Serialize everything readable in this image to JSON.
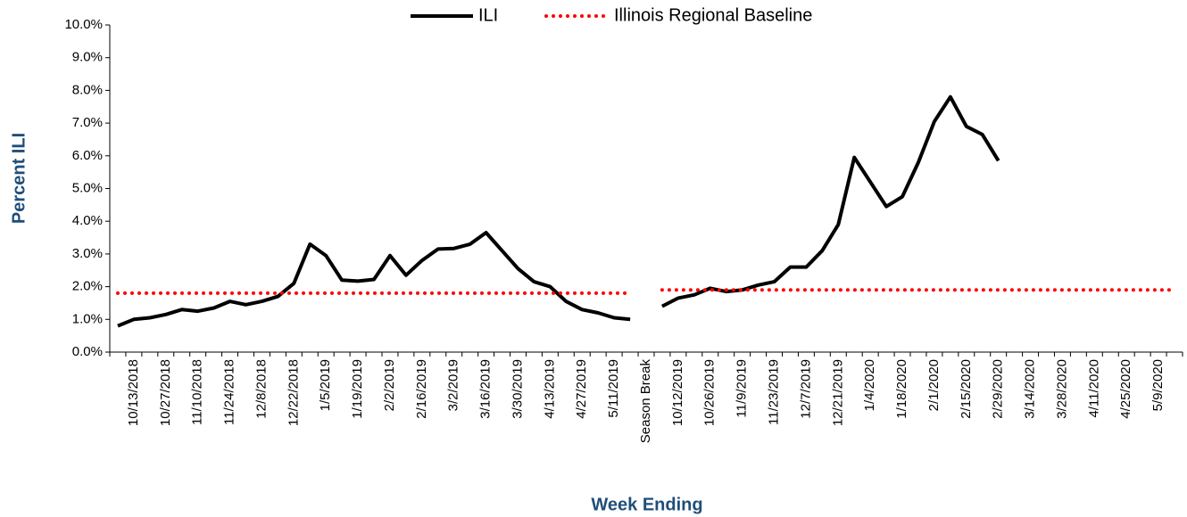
{
  "chart_data": {
    "type": "line",
    "x_label": "Week Ending",
    "y_label": "Percent ILI",
    "categories": [
      null,
      "10/13/2018",
      null,
      "10/27/2018",
      null,
      "11/10/2018",
      null,
      "11/24/2018",
      null,
      "12/8/2018",
      null,
      "12/22/2018",
      null,
      "1/5/2019",
      null,
      "1/19/2019",
      null,
      "2/2/2019",
      null,
      "2/16/2019",
      null,
      "3/2/2019",
      null,
      "3/16/2019",
      null,
      "3/30/2019",
      null,
      "4/13/2019",
      null,
      "4/27/2019",
      null,
      "5/11/2019",
      null,
      "Season Break",
      null,
      "10/12/2019",
      null,
      "10/26/2019",
      null,
      "11/9/2019",
      null,
      "11/23/2019",
      null,
      "12/7/2019",
      null,
      "12/21/2019",
      null,
      "1/4/2020",
      null,
      "1/18/2020",
      null,
      "2/1/2020",
      null,
      "2/15/2020",
      null,
      "2/29/2020",
      null,
      "3/14/2020",
      null,
      "3/28/2020",
      null,
      "4/11/2020",
      null,
      "4/25/2020",
      null,
      "5/9/2020",
      null
    ],
    "series": [
      {
        "name": "ILI",
        "color": "#000000",
        "linestyle": "solid",
        "values": [
          0.8,
          1.0,
          1.05,
          1.15,
          1.3,
          1.25,
          1.35,
          1.55,
          1.45,
          1.55,
          1.7,
          2.1,
          3.3,
          2.95,
          2.2,
          2.17,
          2.22,
          2.95,
          2.35,
          2.8,
          3.15,
          3.17,
          3.3,
          3.65,
          3.1,
          2.55,
          2.15,
          2.0,
          1.55,
          1.3,
          1.2,
          1.05,
          1.0,
          null,
          1.4,
          1.65,
          1.75,
          1.95,
          1.85,
          1.9,
          2.05,
          2.15,
          2.6,
          2.6,
          3.1,
          3.9,
          5.95,
          5.2,
          4.45,
          4.75,
          5.8,
          7.05,
          7.8,
          6.9,
          6.65,
          5.85,
          null,
          null,
          null,
          null,
          null,
          null,
          null,
          null,
          null,
          null,
          null
        ]
      },
      {
        "name": "Illinois Regional Baseline",
        "color": "#ff0000",
        "linestyle": "dotted",
        "values": [
          1.8,
          1.8,
          1.8,
          1.8,
          1.8,
          1.8,
          1.8,
          1.8,
          1.8,
          1.8,
          1.8,
          1.8,
          1.8,
          1.8,
          1.8,
          1.8,
          1.8,
          1.8,
          1.8,
          1.8,
          1.8,
          1.8,
          1.8,
          1.8,
          1.8,
          1.8,
          1.8,
          1.8,
          1.8,
          1.8,
          1.8,
          1.8,
          1.8,
          null,
          1.9,
          1.9,
          1.9,
          1.9,
          1.9,
          1.9,
          1.9,
          1.9,
          1.9,
          1.9,
          1.9,
          1.9,
          1.9,
          1.9,
          1.9,
          1.9,
          1.9,
          1.9,
          1.9,
          1.9,
          1.9,
          1.9,
          1.9,
          1.9,
          1.9,
          1.9,
          1.9,
          1.9,
          1.9,
          1.9,
          1.9,
          1.9,
          1.9
        ]
      }
    ],
    "ylim": [
      0,
      10
    ],
    "yticks": [
      {
        "value": 0,
        "label": "0.0%"
      },
      {
        "value": 1,
        "label": "1.0%"
      },
      {
        "value": 2,
        "label": "2.0%"
      },
      {
        "value": 3,
        "label": "3.0%"
      },
      {
        "value": 4,
        "label": "4.0%"
      },
      {
        "value": 5,
        "label": "5.0%"
      },
      {
        "value": 6,
        "label": "6.0%"
      },
      {
        "value": 7,
        "label": "7.0%"
      },
      {
        "value": 8,
        "label": "8.0%"
      },
      {
        "value": 9,
        "label": "9.0%"
      },
      {
        "value": 10,
        "label": "10.0%"
      }
    ],
    "grid": false,
    "legend": "top"
  }
}
